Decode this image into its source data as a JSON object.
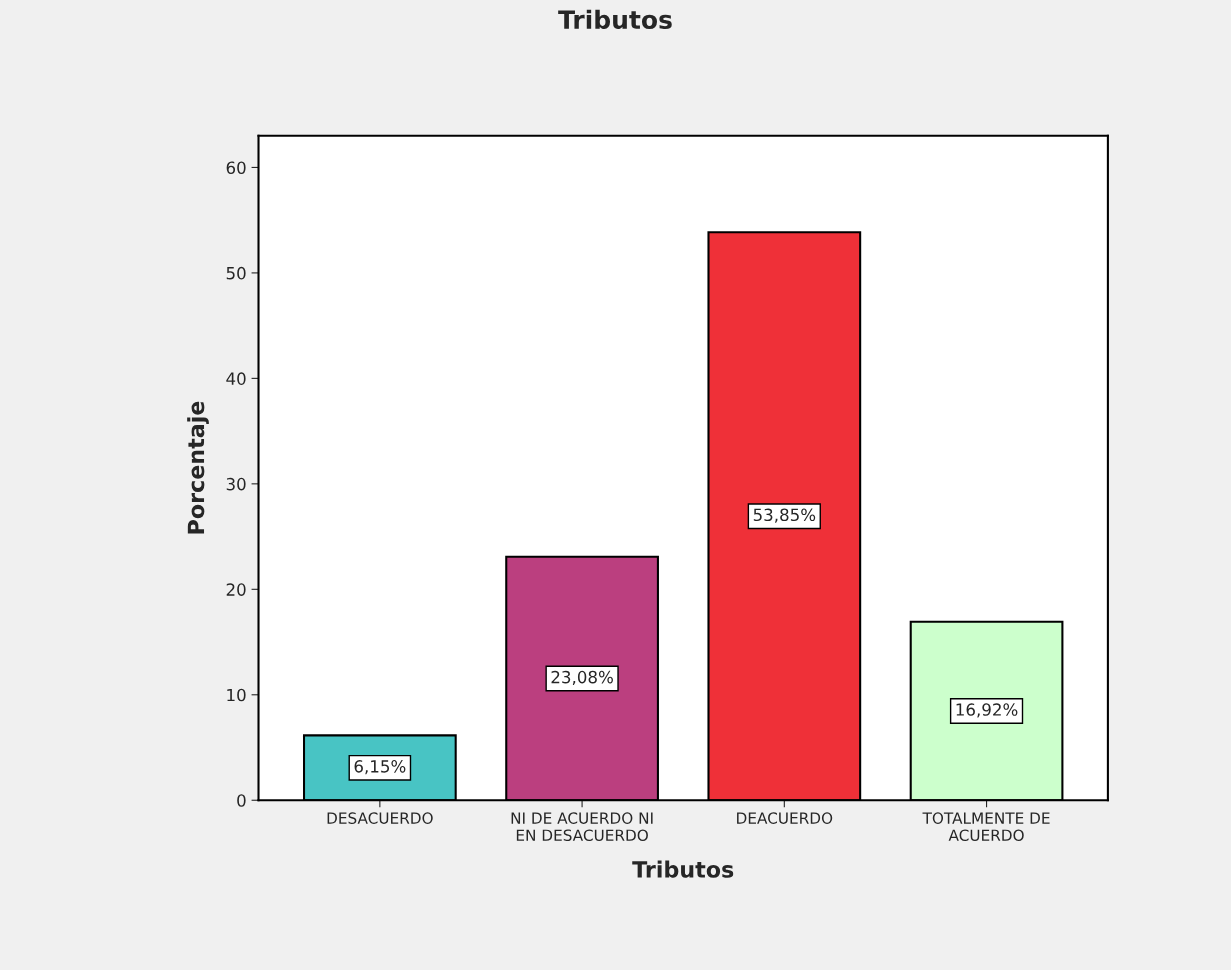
{
  "chart_data": {
    "type": "bar",
    "title": "Tributos",
    "xlabel": "Tributos",
    "ylabel": "Porcentaje",
    "categories": [
      "DESACUERDO",
      "NI DE ACUERDO NI\nEN DESACUERDO",
      "DEACUERDO",
      "TOTALMENTE DE\nACUERDO"
    ],
    "values": [
      6.15,
      23.08,
      53.85,
      16.92
    ],
    "colors": [
      "#48c4c4",
      "#bb3f7f",
      "#ef3038",
      "#ccffcc"
    ],
    "value_labels": [
      "6,15%",
      "23,08%",
      "53,85%",
      "16,92%"
    ],
    "ylim": [
      0,
      63
    ],
    "yticks": [
      0,
      10,
      20,
      30,
      40,
      50,
      60
    ],
    "grid": false,
    "legend": false
  }
}
